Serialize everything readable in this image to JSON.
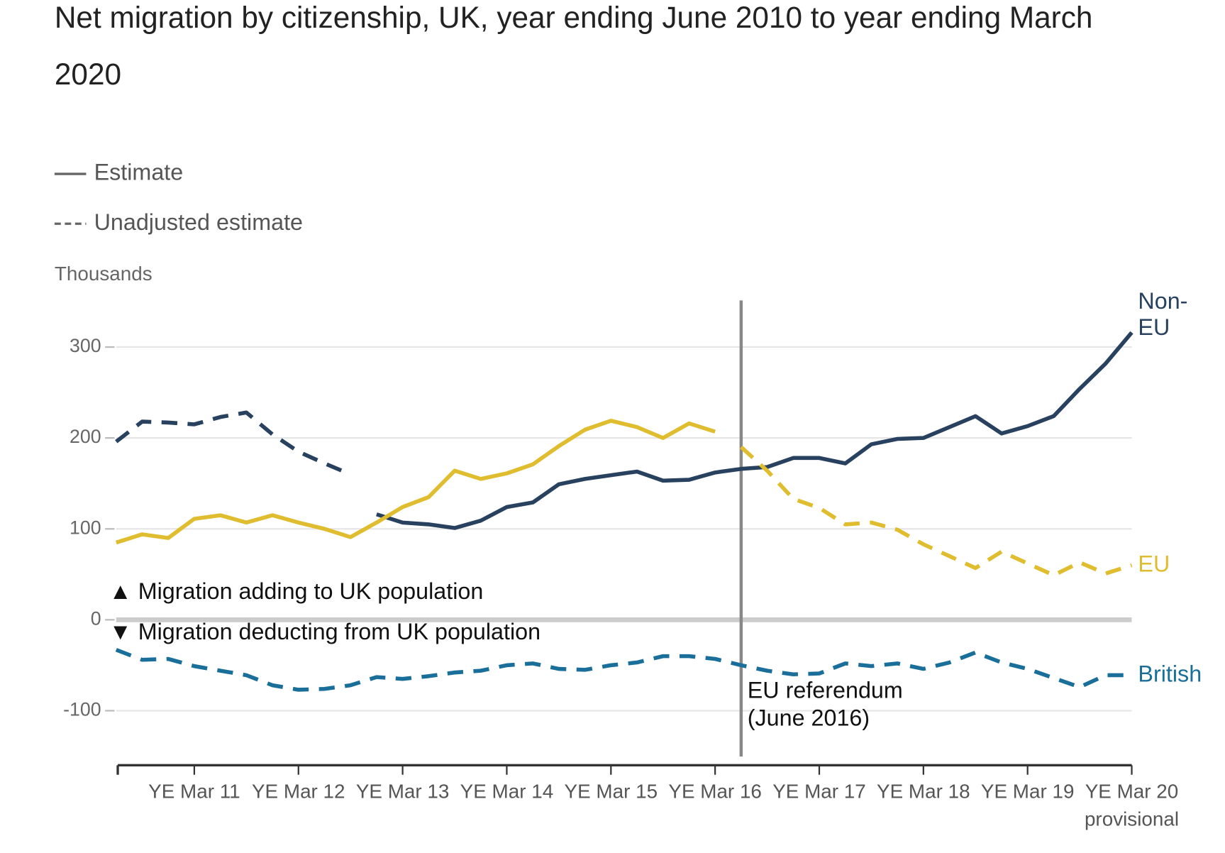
{
  "chart_data": {
    "type": "line",
    "title": "Net migration by citizenship, UK, year ending June 2010 to year ending March 2020",
    "y_label": "Thousands",
    "legend": [
      "Estimate",
      "Unadjusted estimate"
    ],
    "categories": [
      null,
      null,
      null,
      "YE Mar 11",
      null,
      null,
      null,
      "YE Mar 12",
      null,
      null,
      null,
      "YE Mar 13",
      null,
      null,
      null,
      "YE Mar 14",
      null,
      null,
      null,
      "YE Mar 15",
      null,
      null,
      null,
      "YE Mar 16",
      null,
      null,
      null,
      "YE Mar 17",
      null,
      null,
      null,
      "YE Mar 18",
      null,
      null,
      null,
      "YE Mar 19",
      null,
      null,
      null,
      "YE Mar 20 provisional"
    ],
    "ylim": [
      -160,
      360
    ],
    "yticks": [
      -100,
      0,
      100,
      200,
      300
    ],
    "grid": true,
    "annotations": [
      "▲ Migration adding to UK population",
      "▼ Migration deducting from UK population",
      "EU referendum (June 2016)"
    ],
    "series": [
      {
        "name": "Non-EU",
        "color": "#27415f",
        "values": [
          null,
          null,
          null,
          null,
          null,
          null,
          null,
          null,
          null,
          null,
          116,
          107,
          105,
          101,
          109,
          124,
          129,
          149,
          155,
          159,
          163,
          153,
          154,
          162,
          166,
          168,
          178,
          178,
          172,
          193,
          199,
          200,
          212,
          224,
          205,
          213,
          224,
          254,
          282,
          316
        ],
        "unadjusted_values": [
          196,
          218,
          217,
          215,
          223,
          228,
          204,
          185,
          172,
          160,
          null,
          null,
          null,
          null,
          null,
          null,
          null,
          null,
          null,
          null,
          null,
          null,
          null,
          null,
          null,
          null,
          null,
          null,
          null,
          null,
          null,
          null,
          null,
          null,
          null,
          null,
          null,
          null,
          null,
          null
        ]
      },
      {
        "name": "EU",
        "color": "#dfbd2f",
        "values": [
          85,
          94,
          90,
          111,
          115,
          107,
          115,
          107,
          100,
          91,
          107,
          124,
          135,
          164,
          155,
          161,
          171,
          191,
          209,
          219,
          212,
          200,
          216,
          207,
          null,
          null,
          null,
          null,
          null,
          null,
          null,
          null,
          null,
          null,
          null,
          null,
          null,
          null,
          null,
          null
        ],
        "unadjusted_values": [
          null,
          null,
          null,
          null,
          null,
          null,
          null,
          null,
          null,
          null,
          null,
          null,
          null,
          null,
          null,
          null,
          null,
          null,
          null,
          null,
          null,
          null,
          null,
          null,
          190,
          164,
          133,
          123,
          105,
          107,
          99,
          83,
          70,
          57,
          75,
          62,
          49,
          63,
          51,
          60
        ]
      },
      {
        "name": "British",
        "color": "#1a6f9a",
        "values": [
          null,
          null,
          null,
          null,
          null,
          null,
          null,
          null,
          null,
          null,
          null,
          null,
          null,
          null,
          null,
          null,
          null,
          null,
          null,
          null,
          null,
          null,
          null,
          null,
          null,
          null,
          null,
          null,
          null,
          null,
          null,
          null,
          null,
          null,
          null,
          null,
          null,
          null,
          null,
          null
        ],
        "unadjusted_values": [
          -33,
          -44,
          -43,
          -51,
          -56,
          -61,
          -72,
          -77,
          -76,
          -72,
          -63,
          -65,
          -62,
          -58,
          -56,
          -50,
          -48,
          -54,
          -55,
          -50,
          -47,
          -40,
          -40,
          -43,
          -50,
          -56,
          -60,
          -59,
          -48,
          -51,
          -48,
          -54,
          -47,
          -36,
          -47,
          -54,
          -64,
          -74,
          -61,
          -61
        ]
      }
    ]
  }
}
